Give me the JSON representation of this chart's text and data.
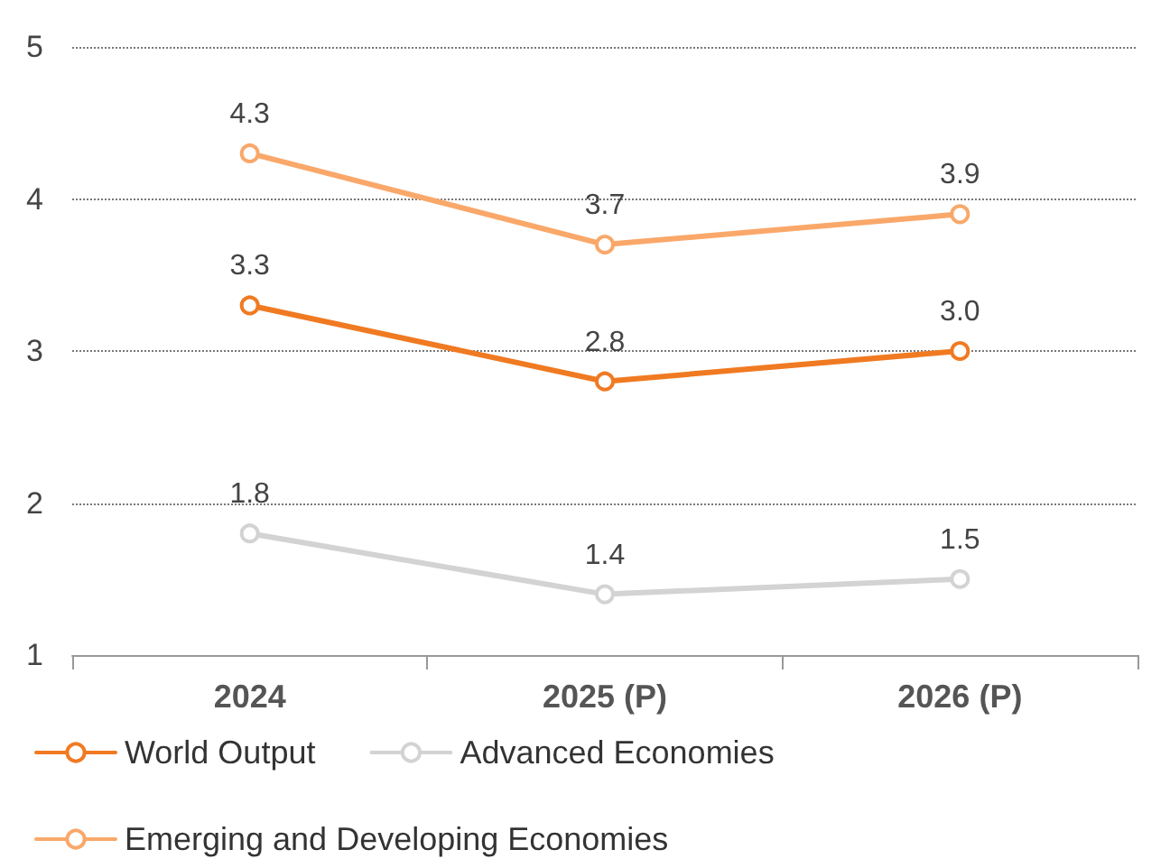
{
  "chart_data": {
    "type": "line",
    "categories": [
      "2024",
      "2025 (P)",
      "2026 (P)"
    ],
    "series": [
      {
        "name": "World Output",
        "color": "#f07a22",
        "values": [
          3.3,
          2.8,
          3.0
        ],
        "value_labels": [
          "3.3",
          "2.8",
          "3.0"
        ]
      },
      {
        "name": "Advanced Economies",
        "color": "#d3d3d3",
        "values": [
          1.8,
          1.4,
          1.5
        ]
      },
      {
        "name": "Emerging and Developing Economies",
        "color": "#f9a86a",
        "values": [
          4.3,
          3.7,
          3.9
        ]
      }
    ],
    "ylim": [
      1,
      5
    ],
    "yticks": [
      1,
      2,
      3,
      4,
      5
    ],
    "grid": "y",
    "legend": "bottom",
    "marker": "circle",
    "line_style": "solid",
    "data_labels": true
  }
}
